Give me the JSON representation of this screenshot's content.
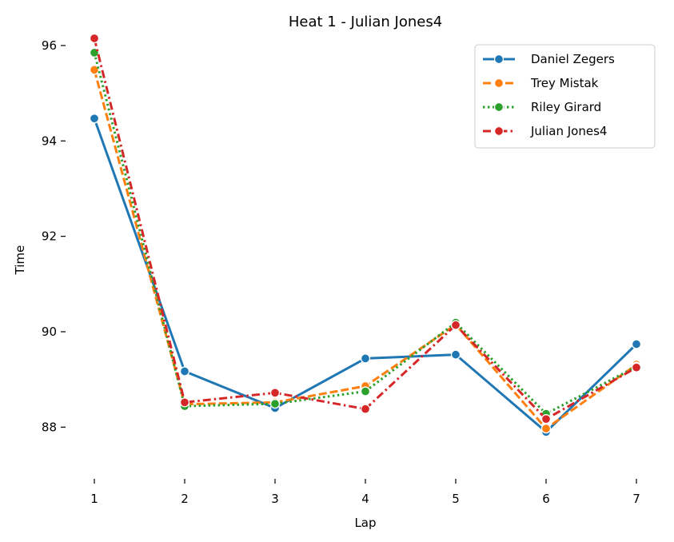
{
  "chart_data": {
    "type": "line",
    "title": "Heat 1 - Julian Jones4",
    "xlabel": "Lap",
    "ylabel": "Time",
    "x": [
      1,
      2,
      3,
      4,
      5,
      6,
      7
    ],
    "xlim": [
      1,
      7
    ],
    "ylim": [
      87.0,
      96.2
    ],
    "xticks": [
      "1",
      "2",
      "3",
      "4",
      "5",
      "6",
      "7"
    ],
    "yticks": [
      88,
      90,
      92,
      94,
      96
    ],
    "grid": false,
    "legend_position": "top-right",
    "series": [
      {
        "name": "Daniel Zegers",
        "color": "#1f77b4",
        "dash": "solid",
        "values": [
          94.47,
          89.17,
          88.4,
          89.44,
          89.52,
          87.9,
          89.74
        ]
      },
      {
        "name": "Trey Mistak",
        "color": "#ff7f0e",
        "dash": "dashed",
        "values": [
          95.49,
          88.48,
          88.52,
          88.86,
          90.15,
          87.97,
          89.31
        ]
      },
      {
        "name": "Riley Girard",
        "color": "#2ca02c",
        "dash": "dotted",
        "values": [
          95.85,
          88.44,
          88.49,
          88.75,
          90.19,
          88.28,
          89.27
        ]
      },
      {
        "name": "Julian Jones4",
        "color": "#d62728",
        "dash": "dashdot",
        "values": [
          96.15,
          88.52,
          88.72,
          88.38,
          90.14,
          88.17,
          89.25
        ]
      }
    ]
  }
}
